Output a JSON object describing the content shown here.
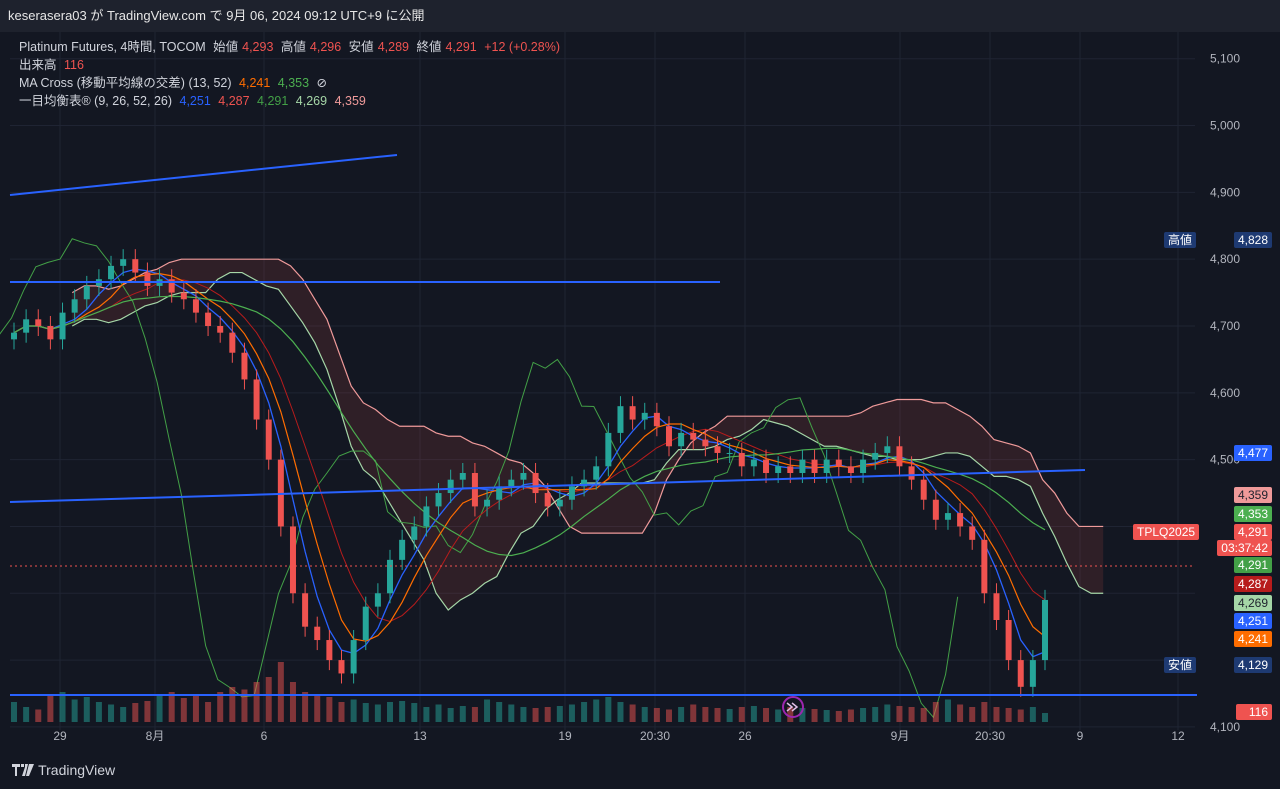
{
  "header": {
    "publish_line": "keserasera03 が TradingView.com で 9月 06, 2024 09:12 UTC+9 に公開"
  },
  "legend": {
    "symbol": "Platinum Futures, 4時間, TOCOM",
    "open_label": "始値",
    "open": "4,293",
    "high_label": "高値",
    "high": "4,296",
    "low_label": "安値",
    "low": "4,289",
    "close_label": "終値",
    "close": "4,291",
    "change": "+12 (+0.28%)",
    "volume_label": "出来高",
    "volume": "116",
    "ma_label": "MA Cross (移動平均線の交差) (13, 52)",
    "ma_fast": "4,241",
    "ma_slow": "4,353",
    "ma_icon": "⊘",
    "ichimoku_label": "一目均衡表® (9, 26, 52, 26)",
    "ichi_tenkan": "4,251",
    "ichi_kijun": "4,287",
    "ichi_chikou": "4,291",
    "ichi_spanA": "4,269",
    "ichi_spanB": "4,359"
  },
  "price_axis": {
    "ticks": [
      "5,100",
      "5,000",
      "4,900",
      "4,800",
      "4,700",
      "4,600",
      "4,500",
      "4,100"
    ],
    "high_label": "高値",
    "high_value": "4,828",
    "low_label": "安値",
    "low_value": "4,129",
    "line_value": "4,477",
    "symbol_tag": "TPLQ2025",
    "last_price": "4,291",
    "countdown": "03:37:42",
    "spanB_value": "4,359",
    "ma_slow_value": "4,353",
    "chikou_value": "4,291",
    "kijun_value": "4,287",
    "spanA_value": "4,269",
    "tenkan_value": "4,251",
    "ma_fast_value": "4,241",
    "volume_value": "116"
  },
  "time_axis": {
    "ticks": [
      "29",
      "8月",
      "6",
      "13",
      "19",
      "20:30",
      "26",
      "9月",
      "20:30",
      "9",
      "12"
    ]
  },
  "footer": {
    "brand": "TradingView",
    "logo": "tv-logo-icon"
  },
  "colors": {
    "background": "#131722",
    "candle_up": "#26a69a",
    "candle_down": "#ef5350",
    "trendline": "#2962ff",
    "tenkan": "#2962ff",
    "kijun": "#b71c1c",
    "chikou": "#43a047",
    "spanA": "#a5d6a7",
    "spanB": "#ef9a9a",
    "ma_fast": "#ff6d00",
    "ma_slow": "#4caf50"
  },
  "chart_data": {
    "type": "candlestick",
    "title": "Platinum Futures, 4時間, TOCOM",
    "ylim": [
      4040,
      5140
    ],
    "trendlines_note": "horizontal and sloped trendlines drawn",
    "closes": [
      4690,
      4710,
      4700,
      4680,
      4720,
      4740,
      4760,
      4770,
      4790,
      4800,
      4780,
      4760,
      4770,
      4750,
      4740,
      4720,
      4700,
      4690,
      4660,
      4620,
      4560,
      4500,
      4400,
      4300,
      4250,
      4230,
      4200,
      4180,
      4230,
      4280,
      4300,
      4350,
      4380,
      4400,
      4430,
      4450,
      4470,
      4480,
      4430,
      4440,
      4460,
      4470,
      4480,
      4450,
      4430,
      4440,
      4460,
      4470,
      4490,
      4540,
      4580,
      4560,
      4570,
      4550,
      4520,
      4540,
      4530,
      4520,
      4510,
      4510,
      4490,
      4500,
      4480,
      4490,
      4480,
      4500,
      4480,
      4500,
      4490,
      4480,
      4500,
      4510,
      4520,
      4490,
      4470,
      4440,
      4410,
      4420,
      4400,
      4380,
      4300,
      4260,
      4200,
      4160,
      4200,
      4290
    ],
    "volumes": [
      40,
      30,
      25,
      55,
      60,
      45,
      50,
      40,
      35,
      30,
      38,
      42,
      55,
      60,
      48,
      52,
      40,
      60,
      70,
      65,
      80,
      90,
      120,
      80,
      60,
      55,
      50,
      40,
      45,
      38,
      35,
      40,
      42,
      38,
      30,
      35,
      28,
      32,
      30,
      45,
      40,
      35,
      30,
      28,
      30,
      32,
      35,
      40,
      45,
      50,
      40,
      35,
      30,
      28,
      25,
      30,
      35,
      30,
      28,
      26,
      30,
      32,
      28,
      25,
      30,
      28,
      26,
      24,
      22,
      25,
      28,
      30,
      35,
      32,
      30,
      28,
      40,
      45,
      35,
      30,
      40,
      30,
      28,
      25,
      30,
      18
    ]
  }
}
